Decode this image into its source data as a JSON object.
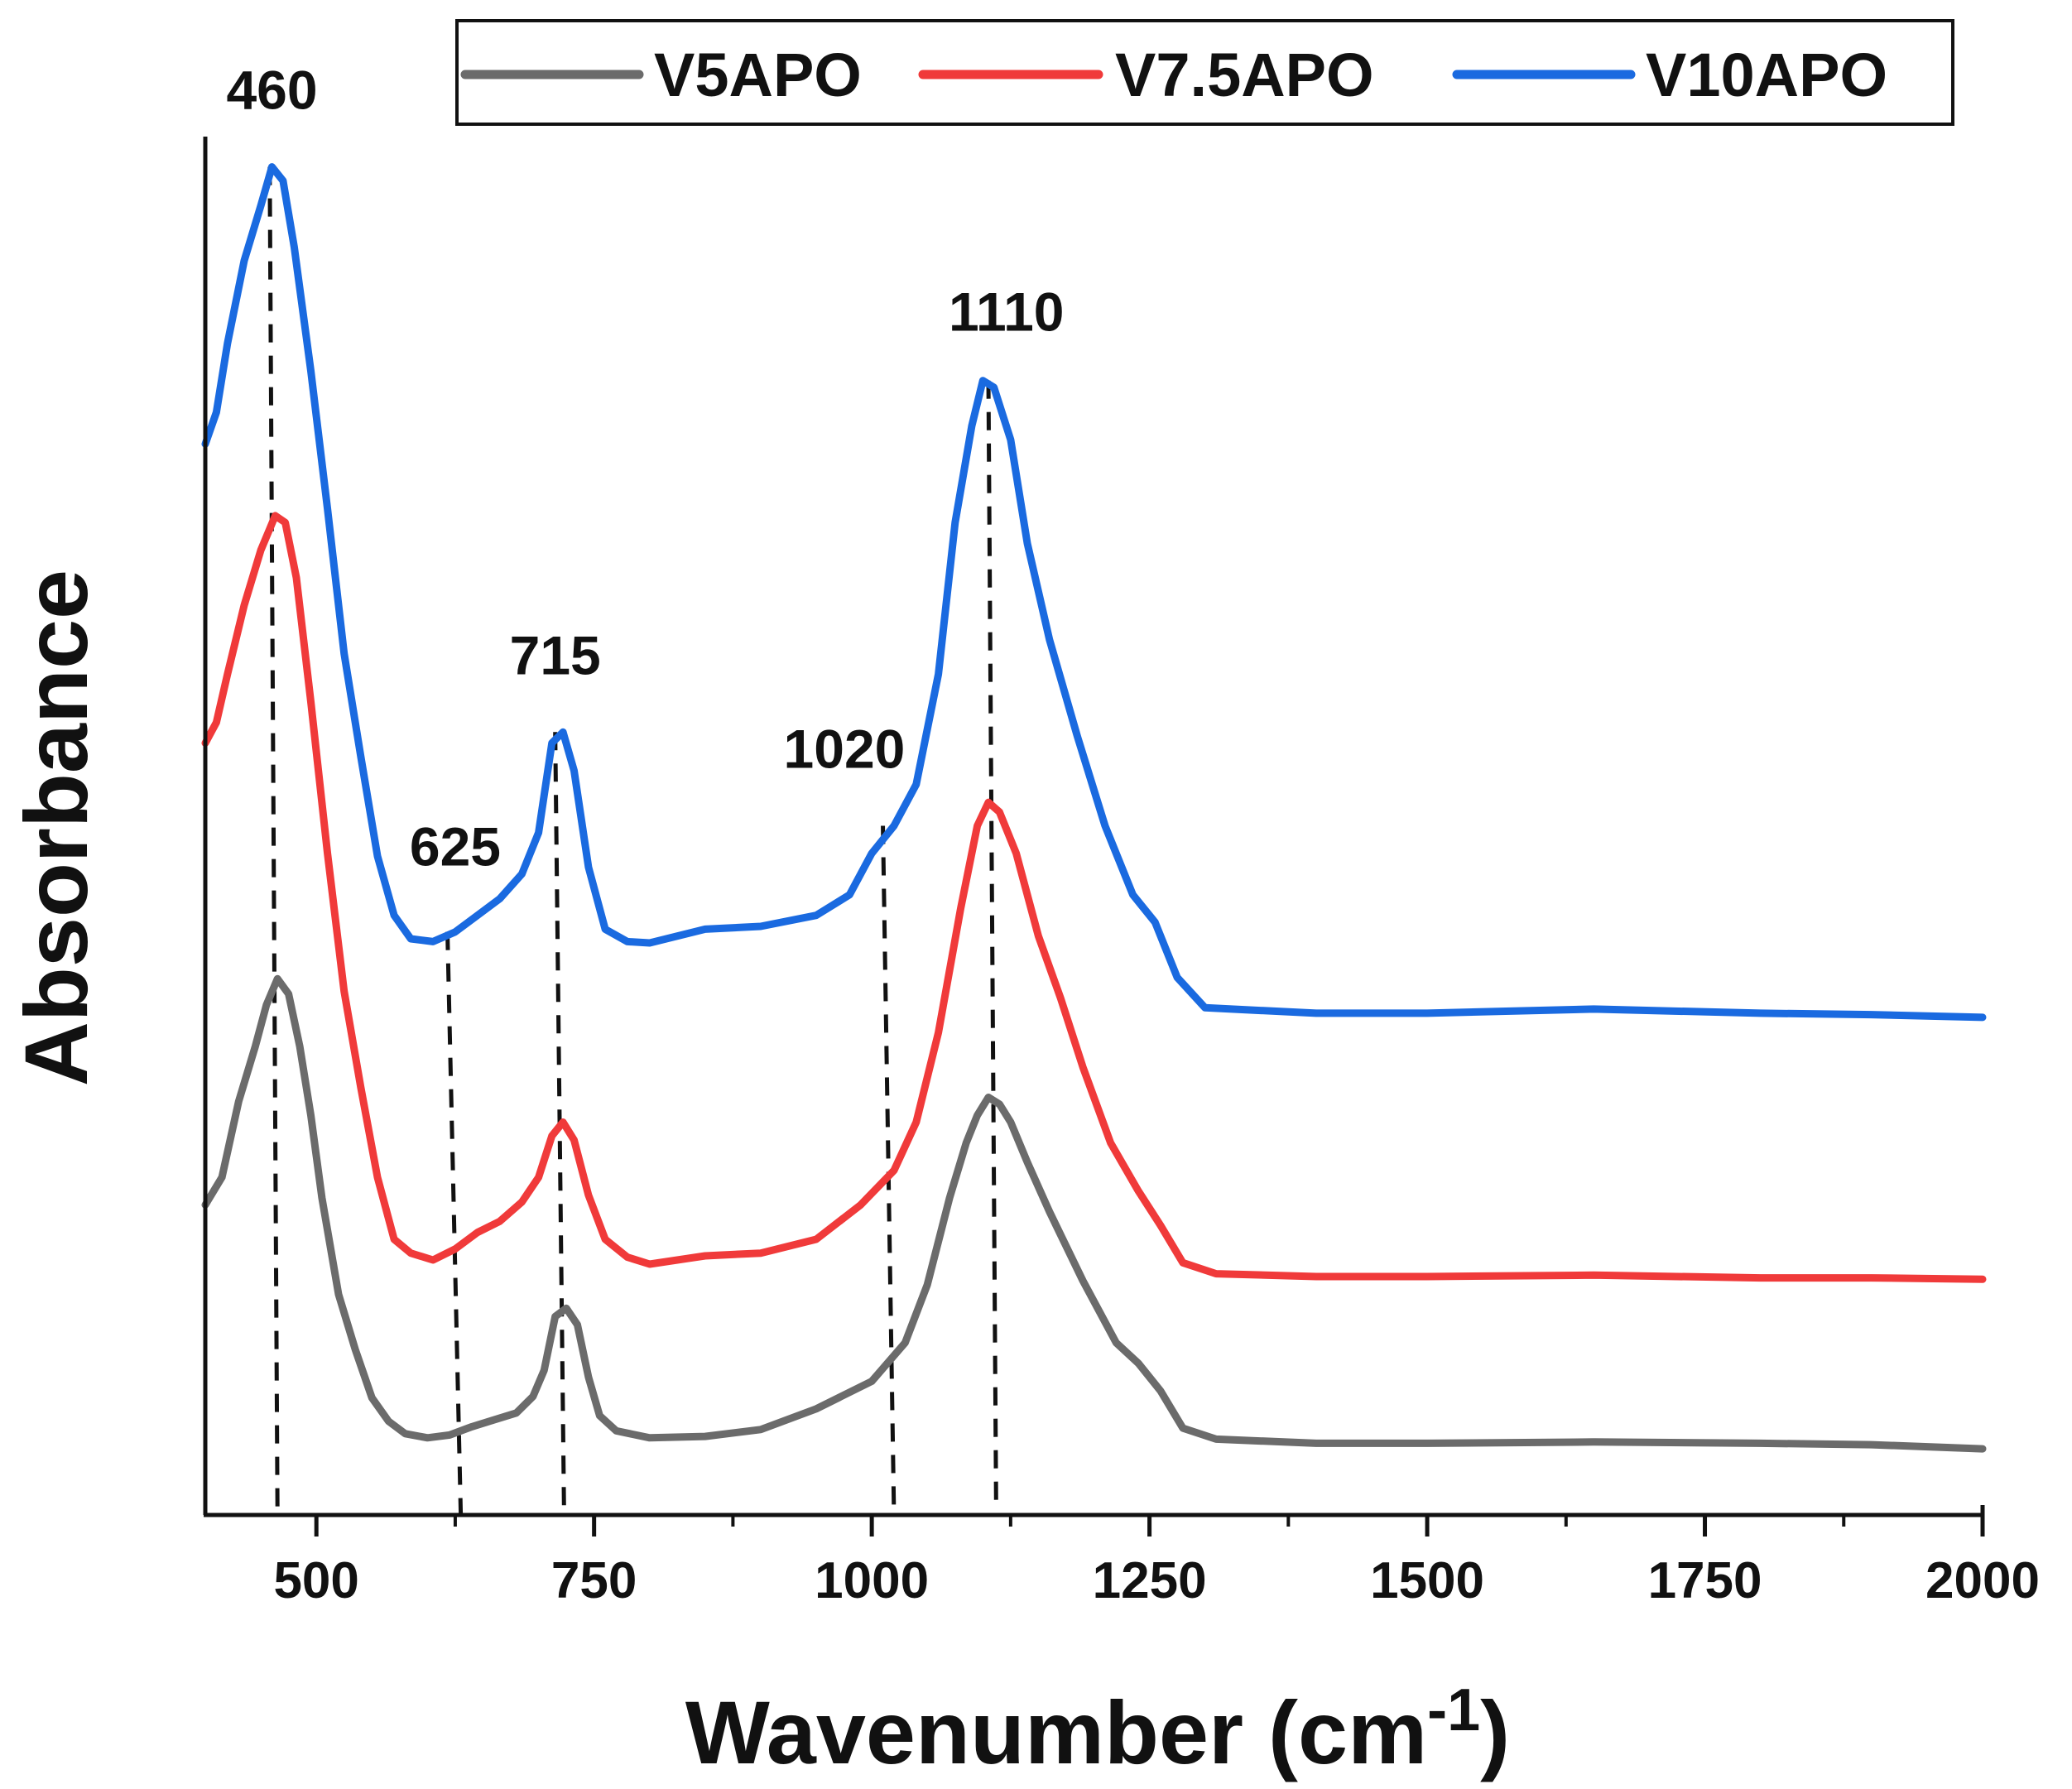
{
  "chart_data": {
    "type": "line",
    "title": "",
    "xlabel": "Wavenumber (cm",
    "xlabel_superscript": "-1",
    "xlabel_close": ")",
    "ylabel": "Absorbance",
    "xlim": [
      400,
      2000
    ],
    "ylim": [
      0,
      1
    ],
    "grid": false,
    "legend_position": "top",
    "x_ticks": [
      500,
      750,
      1000,
      1250,
      1500,
      1750,
      2000
    ],
    "x_tick_labels": [
      "500",
      "750",
      "1000",
      "1250",
      "1500",
      "1750",
      "2000"
    ],
    "series": [
      {
        "name": "V5APO",
        "color": "#6b6b6b",
        "points": [
          [
            400,
            0.225
          ],
          [
            415,
            0.245
          ],
          [
            430,
            0.3
          ],
          [
            445,
            0.34
          ],
          [
            455,
            0.37
          ],
          [
            465,
            0.389
          ],
          [
            475,
            0.378
          ],
          [
            485,
            0.34
          ],
          [
            495,
            0.29
          ],
          [
            505,
            0.23
          ],
          [
            520,
            0.16
          ],
          [
            535,
            0.12
          ],
          [
            550,
            0.085
          ],
          [
            565,
            0.068
          ],
          [
            580,
            0.059
          ],
          [
            600,
            0.056
          ],
          [
            620,
            0.058
          ],
          [
            640,
            0.064
          ],
          [
            660,
            0.069
          ],
          [
            680,
            0.074
          ],
          [
            695,
            0.086
          ],
          [
            705,
            0.105
          ],
          [
            715,
            0.144
          ],
          [
            725,
            0.15
          ],
          [
            735,
            0.138
          ],
          [
            745,
            0.1
          ],
          [
            755,
            0.072
          ],
          [
            770,
            0.061
          ],
          [
            800,
            0.056
          ],
          [
            850,
            0.057
          ],
          [
            900,
            0.062
          ],
          [
            950,
            0.077
          ],
          [
            1000,
            0.097
          ],
          [
            1030,
            0.125
          ],
          [
            1050,
            0.167
          ],
          [
            1070,
            0.23
          ],
          [
            1085,
            0.27
          ],
          [
            1095,
            0.29
          ],
          [
            1105,
            0.303
          ],
          [
            1115,
            0.298
          ],
          [
            1125,
            0.285
          ],
          [
            1140,
            0.256
          ],
          [
            1160,
            0.22
          ],
          [
            1190,
            0.17
          ],
          [
            1220,
            0.125
          ],
          [
            1240,
            0.11
          ],
          [
            1260,
            0.09
          ],
          [
            1280,
            0.063
          ],
          [
            1310,
            0.055
          ],
          [
            1400,
            0.052
          ],
          [
            1500,
            0.052
          ],
          [
            1650,
            0.053
          ],
          [
            1800,
            0.052
          ],
          [
            1900,
            0.051
          ],
          [
            2000,
            0.048
          ]
        ]
      },
      {
        "name": "V7.5APO",
        "color": "#f03a3a",
        "points": [
          [
            400,
            0.56
          ],
          [
            410,
            0.575
          ],
          [
            420,
            0.61
          ],
          [
            435,
            0.66
          ],
          [
            450,
            0.7
          ],
          [
            463,
            0.725
          ],
          [
            472,
            0.72
          ],
          [
            482,
            0.68
          ],
          [
            495,
            0.59
          ],
          [
            510,
            0.48
          ],
          [
            525,
            0.38
          ],
          [
            540,
            0.31
          ],
          [
            555,
            0.245
          ],
          [
            570,
            0.2
          ],
          [
            585,
            0.19
          ],
          [
            605,
            0.185
          ],
          [
            625,
            0.193
          ],
          [
            645,
            0.205
          ],
          [
            665,
            0.213
          ],
          [
            685,
            0.227
          ],
          [
            700,
            0.245
          ],
          [
            712,
            0.275
          ],
          [
            722,
            0.285
          ],
          [
            732,
            0.272
          ],
          [
            745,
            0.232
          ],
          [
            760,
            0.2
          ],
          [
            780,
            0.187
          ],
          [
            800,
            0.182
          ],
          [
            850,
            0.188
          ],
          [
            900,
            0.19
          ],
          [
            950,
            0.2
          ],
          [
            990,
            0.225
          ],
          [
            1020,
            0.25
          ],
          [
            1040,
            0.285
          ],
          [
            1060,
            0.35
          ],
          [
            1080,
            0.44
          ],
          [
            1095,
            0.5
          ],
          [
            1105,
            0.517
          ],
          [
            1115,
            0.51
          ],
          [
            1130,
            0.48
          ],
          [
            1150,
            0.42
          ],
          [
            1170,
            0.375
          ],
          [
            1190,
            0.325
          ],
          [
            1215,
            0.27
          ],
          [
            1240,
            0.235
          ],
          [
            1260,
            0.21
          ],
          [
            1280,
            0.183
          ],
          [
            1310,
            0.175
          ],
          [
            1400,
            0.173
          ],
          [
            1500,
            0.173
          ],
          [
            1650,
            0.174
          ],
          [
            1800,
            0.172
          ],
          [
            1900,
            0.172
          ],
          [
            2000,
            0.171
          ]
        ]
      },
      {
        "name": "V10APO",
        "color": "#1a6ae0",
        "points": [
          [
            400,
            0.777
          ],
          [
            410,
            0.8
          ],
          [
            420,
            0.85
          ],
          [
            435,
            0.91
          ],
          [
            450,
            0.95
          ],
          [
            460,
            0.978
          ],
          [
            470,
            0.968
          ],
          [
            480,
            0.92
          ],
          [
            495,
            0.83
          ],
          [
            510,
            0.73
          ],
          [
            525,
            0.625
          ],
          [
            540,
            0.55
          ],
          [
            555,
            0.478
          ],
          [
            570,
            0.435
          ],
          [
            585,
            0.418
          ],
          [
            605,
            0.416
          ],
          [
            625,
            0.423
          ],
          [
            645,
            0.435
          ],
          [
            665,
            0.447
          ],
          [
            685,
            0.465
          ],
          [
            700,
            0.495
          ],
          [
            712,
            0.56
          ],
          [
            722,
            0.568
          ],
          [
            732,
            0.54
          ],
          [
            745,
            0.47
          ],
          [
            760,
            0.425
          ],
          [
            780,
            0.416
          ],
          [
            800,
            0.415
          ],
          [
            850,
            0.425
          ],
          [
            900,
            0.427
          ],
          [
            950,
            0.435
          ],
          [
            980,
            0.45
          ],
          [
            1000,
            0.48
          ],
          [
            1020,
            0.5
          ],
          [
            1040,
            0.53
          ],
          [
            1060,
            0.61
          ],
          [
            1075,
            0.72
          ],
          [
            1090,
            0.79
          ],
          [
            1100,
            0.823
          ],
          [
            1110,
            0.818
          ],
          [
            1125,
            0.78
          ],
          [
            1140,
            0.705
          ],
          [
            1160,
            0.635
          ],
          [
            1185,
            0.565
          ],
          [
            1210,
            0.5
          ],
          [
            1235,
            0.45
          ],
          [
            1255,
            0.43
          ],
          [
            1275,
            0.39
          ],
          [
            1300,
            0.368
          ],
          [
            1400,
            0.364
          ],
          [
            1500,
            0.364
          ],
          [
            1650,
            0.367
          ],
          [
            1800,
            0.364
          ],
          [
            1900,
            0.363
          ],
          [
            2000,
            0.361
          ]
        ]
      }
    ],
    "annotations": [
      {
        "label": "460",
        "x": 460,
        "y": 0.978
      },
      {
        "label": "625",
        "x": 625,
        "y": 0.423
      },
      {
        "label": "715",
        "x": 715,
        "y": 0.568
      },
      {
        "label": "1020",
        "x": 1020,
        "y": 0.5
      },
      {
        "label": "1110",
        "x": 1110,
        "y": 0.823
      }
    ],
    "guide_lines": [
      {
        "x1": 458,
        "y1": 0.978,
        "x2": 465,
        "y2": 0.0
      },
      {
        "x1": 618,
        "y1": 0.423,
        "x2": 630,
        "y2": 0.0
      },
      {
        "x1": 715,
        "y1": 0.568,
        "x2": 723,
        "y2": 0.0
      },
      {
        "x1": 1010,
        "y1": 0.5,
        "x2": 1020,
        "y2": 0.0
      },
      {
        "x1": 1105,
        "y1": 0.823,
        "x2": 1112,
        "y2": 0.0
      }
    ]
  }
}
